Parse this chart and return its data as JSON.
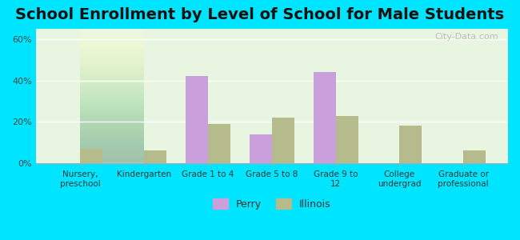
{
  "title": "School Enrollment by Level of School for Male Students",
  "categories": [
    "Nursery,\npreschool",
    "Kindergarten",
    "Grade 1 to 4",
    "Grade 5 to 8",
    "Grade 9 to\n12",
    "College\nundergrad",
    "Graduate or\nprofessional"
  ],
  "perry_values": [
    0,
    0,
    42,
    14,
    44,
    0,
    0
  ],
  "illinois_values": [
    7,
    6,
    19,
    22,
    23,
    18,
    6
  ],
  "perry_color": "#c9a0dc",
  "illinois_color": "#b5bb8a",
  "background_color": "#00e5ff",
  "plot_bg_top": "#e8f5e9",
  "plot_bg_bottom": "#f0f8e8",
  "title_fontsize": 14,
  "ylabel_ticks": [
    "0%",
    "20%",
    "40%",
    "60%"
  ],
  "yticks": [
    0,
    20,
    40,
    60
  ],
  "ylim": [
    0,
    65
  ],
  "bar_width": 0.35,
  "legend_labels": [
    "Perry",
    "Illinois"
  ],
  "watermark": "City-Data.com"
}
